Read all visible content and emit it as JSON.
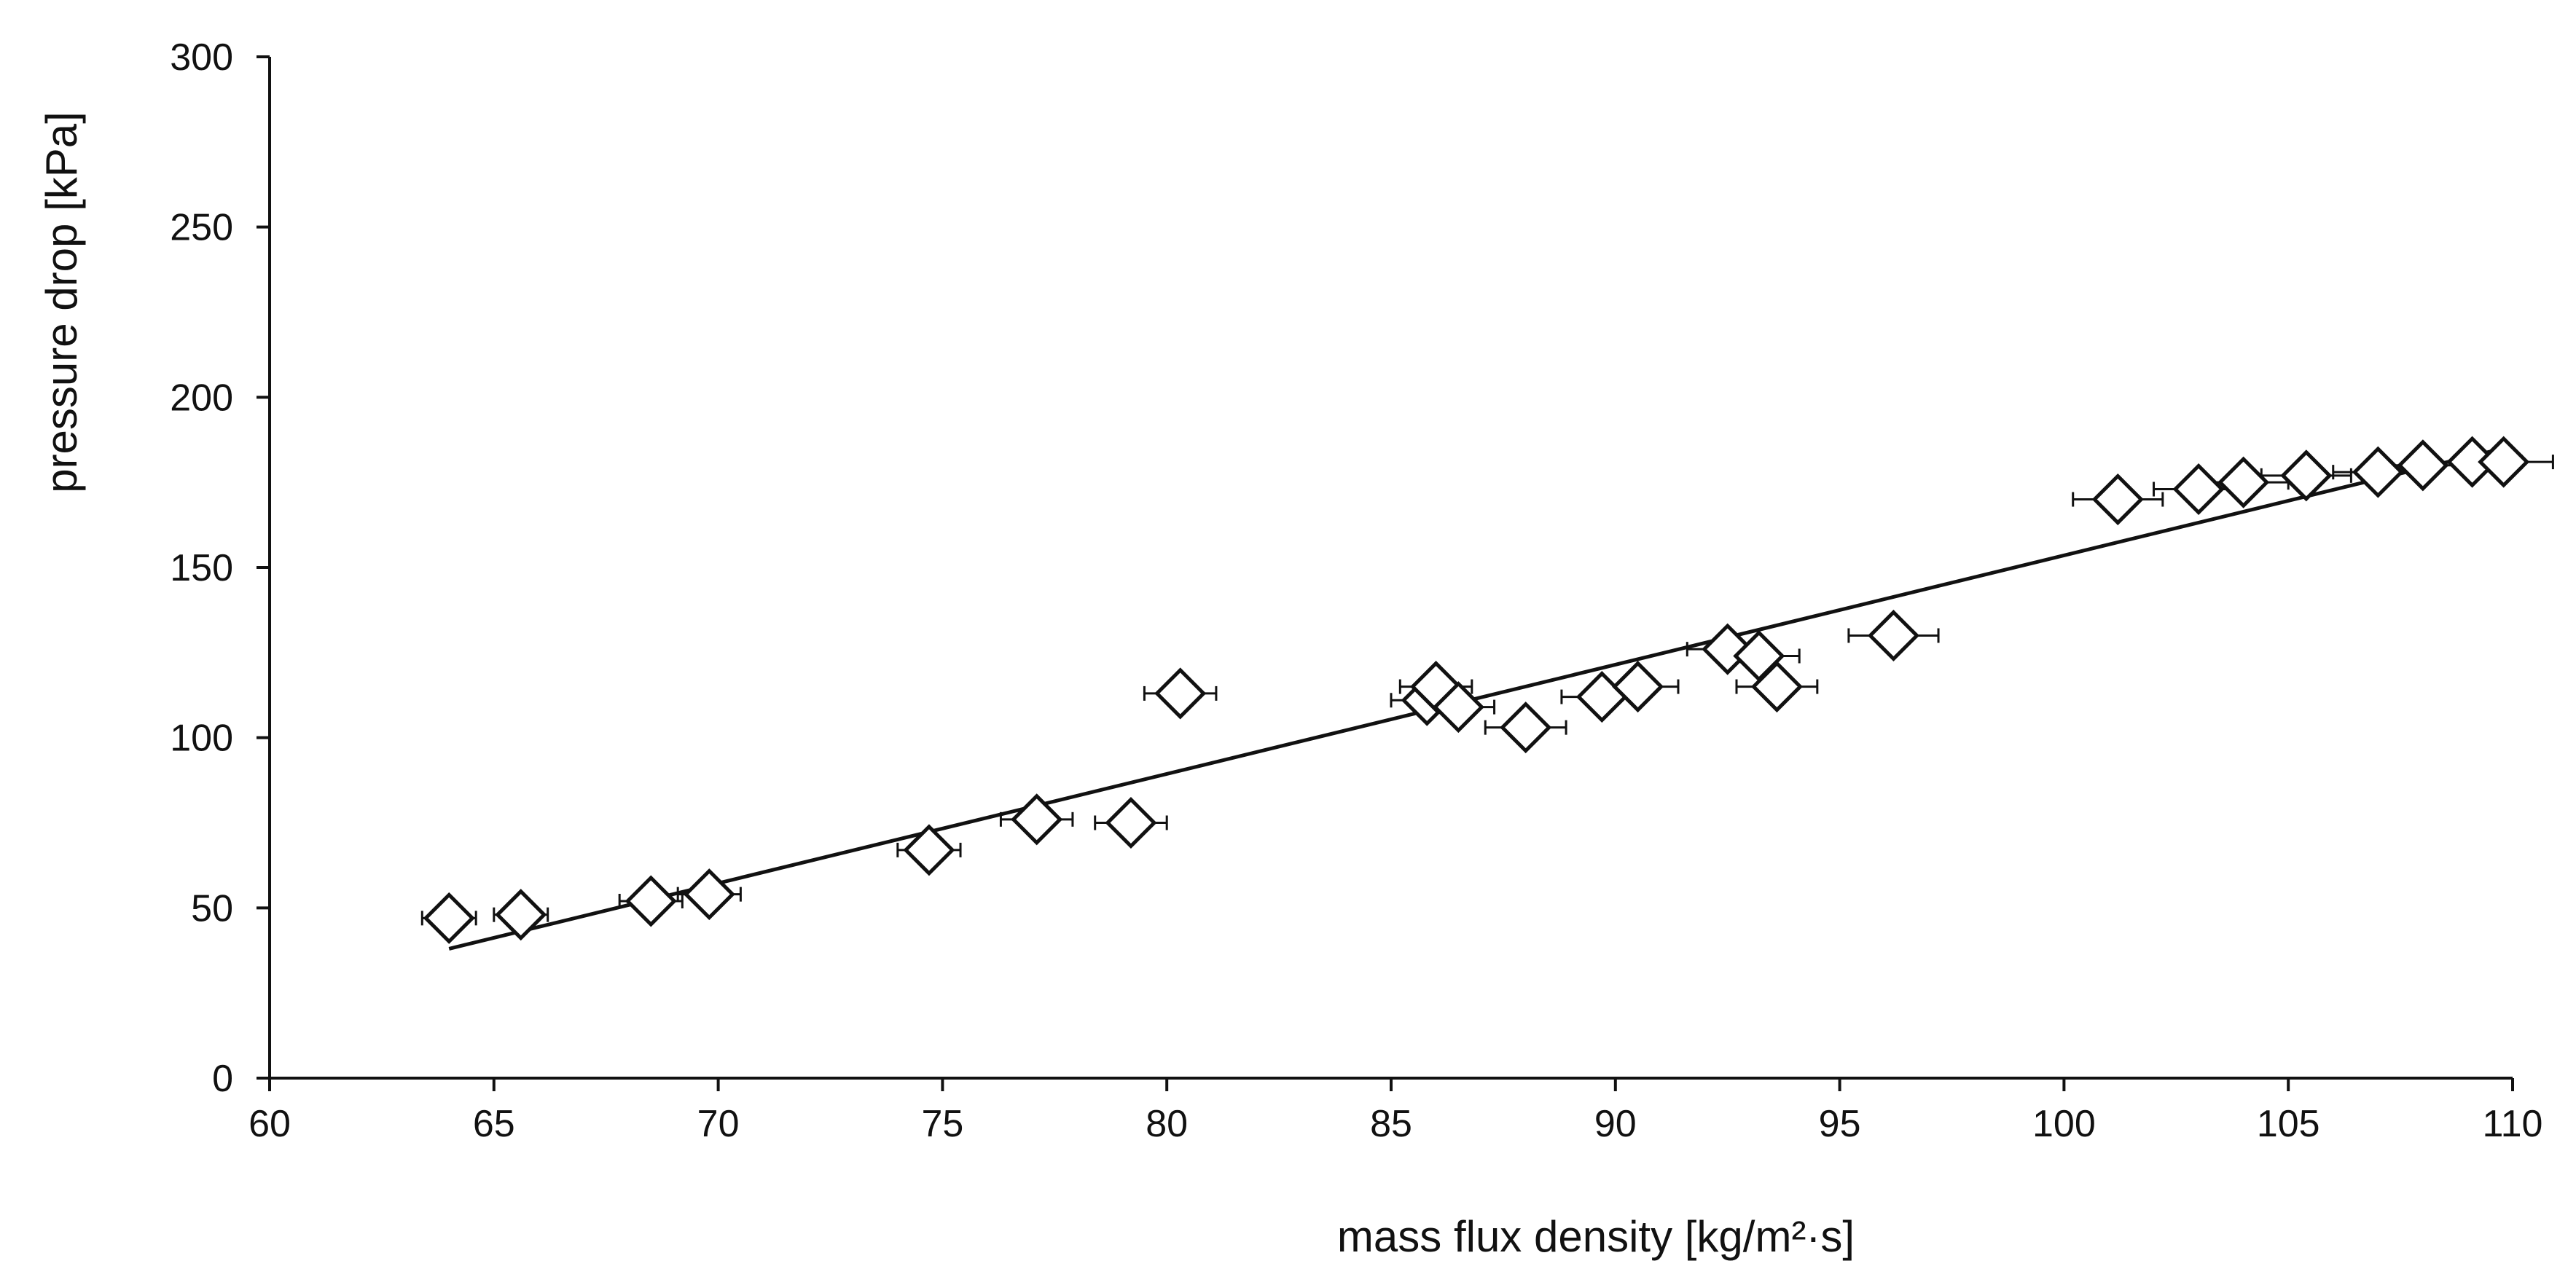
{
  "chart_data": {
    "type": "scatter",
    "title": "",
    "xlabel": "mass flux density [kg/m²·s]",
    "ylabel": "pressure drop [kPa]",
    "xlim": [
      60,
      110
    ],
    "ylim": [
      0,
      300
    ],
    "xticks": [
      60,
      65,
      70,
      75,
      80,
      85,
      90,
      95,
      100,
      105,
      110
    ],
    "yticks": [
      0,
      50,
      100,
      150,
      200,
      250,
      300
    ],
    "grid": false,
    "legend": "none",
    "marker": "open-diamond",
    "colors": {
      "marker": "#111111",
      "line": "#111111",
      "axis": "#111111"
    },
    "series": [
      {
        "points": [
          {
            "x": 64.0,
            "y": 47,
            "xerr": 0.6
          },
          {
            "x": 65.6,
            "y": 48,
            "xerr": 0.6
          },
          {
            "x": 68.5,
            "y": 52,
            "xerr": 0.7
          },
          {
            "x": 69.8,
            "y": 54,
            "xerr": 0.7
          },
          {
            "x": 74.7,
            "y": 67,
            "xerr": 0.7
          },
          {
            "x": 77.1,
            "y": 76,
            "xerr": 0.8
          },
          {
            "x": 79.2,
            "y": 75,
            "xerr": 0.8
          },
          {
            "x": 80.3,
            "y": 113,
            "xerr": 0.8
          },
          {
            "x": 85.8,
            "y": 111,
            "xerr": 0.8
          },
          {
            "x": 86.0,
            "y": 115,
            "xerr": 0.8
          },
          {
            "x": 86.5,
            "y": 109,
            "xerr": 0.8
          },
          {
            "x": 88.0,
            "y": 103,
            "xerr": 0.9
          },
          {
            "x": 89.7,
            "y": 112,
            "xerr": 0.9
          },
          {
            "x": 90.5,
            "y": 115,
            "xerr": 0.9
          },
          {
            "x": 92.5,
            "y": 126,
            "xerr": 0.9
          },
          {
            "x": 93.2,
            "y": 124,
            "xerr": 0.9
          },
          {
            "x": 93.6,
            "y": 115,
            "xerr": 0.9
          },
          {
            "x": 96.2,
            "y": 130,
            "xerr": 1.0
          },
          {
            "x": 101.2,
            "y": 170,
            "xerr": 1.0
          },
          {
            "x": 103.0,
            "y": 173,
            "xerr": 1.0
          },
          {
            "x": 104.0,
            "y": 175,
            "xerr": 1.0
          },
          {
            "x": 105.4,
            "y": 177,
            "xerr": 1.0
          },
          {
            "x": 107.0,
            "y": 178,
            "xerr": 1.0
          },
          {
            "x": 108.0,
            "y": 180,
            "xerr": 1.1
          },
          {
            "x": 109.1,
            "y": 181,
            "xerr": 1.1
          },
          {
            "x": 109.8,
            "y": 181,
            "xerr": 1.1
          }
        ]
      }
    ],
    "trendline": {
      "type": "linear",
      "x": [
        64.0,
        109.8
      ],
      "y": [
        38,
        185
      ]
    }
  }
}
